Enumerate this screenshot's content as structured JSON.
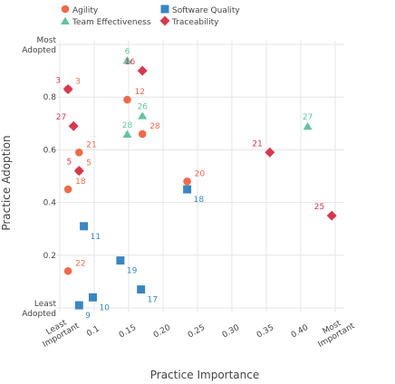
{
  "chart_data": {
    "type": "scatter",
    "xlabel": "Practice Importance",
    "ylabel": "Practice Adoption",
    "xlim": [
      0.05,
      0.45
    ],
    "ylim": [
      0.0,
      1.0
    ],
    "x_ticks": [
      {
        "v": 0.05,
        "label": [
          "Least",
          "Important"
        ]
      },
      {
        "v": 0.1,
        "label": [
          "0.1"
        ]
      },
      {
        "v": 0.15,
        "label": [
          "0.15"
        ]
      },
      {
        "v": 0.2,
        "label": [
          "0.20"
        ]
      },
      {
        "v": 0.25,
        "label": [
          "0.25"
        ]
      },
      {
        "v": 0.3,
        "label": [
          "0.30"
        ]
      },
      {
        "v": 0.35,
        "label": [
          "0.35"
        ]
      },
      {
        "v": 0.4,
        "label": [
          "0.40"
        ]
      },
      {
        "v": 0.45,
        "label": [
          "Most",
          "Important"
        ]
      }
    ],
    "y_ticks": [
      {
        "v": 0.0,
        "label": [
          "Least",
          "Adopted"
        ]
      },
      {
        "v": 0.2,
        "label": [
          "0.2"
        ]
      },
      {
        "v": 0.4,
        "label": [
          "0.4"
        ]
      },
      {
        "v": 0.6,
        "label": [
          "0.6"
        ]
      },
      {
        "v": 0.8,
        "label": [
          "0.8"
        ]
      },
      {
        "v": 1.0,
        "label": [
          "Most",
          "Adopted"
        ]
      }
    ],
    "grid": true,
    "legend_position": "top-left",
    "series": [
      {
        "name": "Agility",
        "marker": "circle",
        "color": "#ef6a4b",
        "points": [
          {
            "x": 0.062,
            "y": 0.83,
            "label": "3"
          },
          {
            "x": 0.078,
            "y": 0.59,
            "label": "21"
          },
          {
            "x": 0.078,
            "y": 0.52,
            "label": "5"
          },
          {
            "x": 0.062,
            "y": 0.45,
            "label": "18"
          },
          {
            "x": 0.062,
            "y": 0.14,
            "label": "22"
          },
          {
            "x": 0.148,
            "y": 0.79,
            "label": "12"
          },
          {
            "x": 0.17,
            "y": 0.66,
            "label": "28"
          },
          {
            "x": 0.235,
            "y": 0.48,
            "label": "20"
          }
        ]
      },
      {
        "name": "Software Quality",
        "marker": "square",
        "color": "#3a86c0",
        "points": [
          {
            "x": 0.078,
            "y": 0.01,
            "label": "9"
          },
          {
            "x": 0.085,
            "y": 0.31,
            "label": "11"
          },
          {
            "x": 0.098,
            "y": 0.04,
            "label": "10"
          },
          {
            "x": 0.138,
            "y": 0.18,
            "label": "19"
          },
          {
            "x": 0.168,
            "y": 0.07,
            "label": "17"
          },
          {
            "x": 0.235,
            "y": 0.45,
            "label": "18"
          }
        ]
      },
      {
        "name": "Team Effectiveness",
        "marker": "triangle",
        "color": "#66c2a5",
        "points": [
          {
            "x": 0.148,
            "y": 0.94,
            "label": "6"
          },
          {
            "x": 0.17,
            "y": 0.73,
            "label": "26"
          },
          {
            "x": 0.148,
            "y": 0.66,
            "label": "28"
          },
          {
            "x": 0.41,
            "y": 0.69,
            "label": "27"
          }
        ]
      },
      {
        "name": "Traceability",
        "marker": "diamond",
        "color": "#d6394f",
        "points": [
          {
            "x": 0.062,
            "y": 0.83,
            "label": "3"
          },
          {
            "x": 0.07,
            "y": 0.69,
            "label": "27"
          },
          {
            "x": 0.078,
            "y": 0.52,
            "label": "5"
          },
          {
            "x": 0.17,
            "y": 0.9,
            "label": "16"
          },
          {
            "x": 0.355,
            "y": 0.59,
            "label": "21"
          },
          {
            "x": 0.445,
            "y": 0.35,
            "label": "25"
          }
        ]
      }
    ]
  }
}
